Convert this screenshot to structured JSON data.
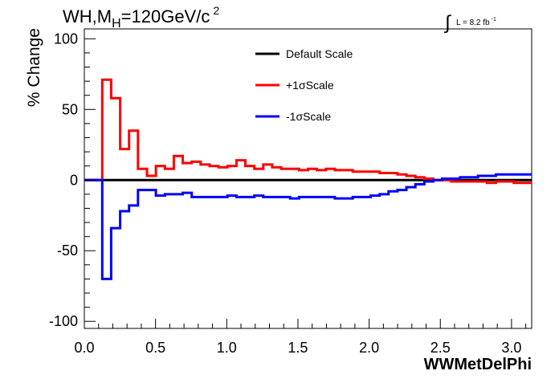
{
  "chart_data": {
    "type": "line",
    "title": {
      "main": "WH,M",
      "subscript": "H",
      "rest": "=120GeV/c",
      "superscript": "2"
    },
    "lumi": {
      "integral_symbol": "∫",
      "text": "L = 8.2 fb",
      "superscript": "-1"
    },
    "xlabel": "WWMetDelPhi",
    "ylabel": "% Change",
    "xlim": [
      0,
      3.1416
    ],
    "ylim": [
      -105,
      107
    ],
    "x_ticks": [
      "0.0",
      "0.5",
      "1.0",
      "1.5",
      "2.0",
      "2.5",
      "3.0"
    ],
    "y_ticks": [
      "-100",
      "-50",
      "0",
      "50",
      "100"
    ],
    "legend_position": "top-center",
    "bin_edges": [
      0,
      0.1257,
      0.1885,
      0.2513,
      0.3142,
      0.377,
      0.4398,
      0.5027,
      0.5655,
      0.6283,
      0.6912,
      0.754,
      0.8168,
      0.8796,
      0.9425,
      1.0053,
      1.0681,
      1.131,
      1.1938,
      1.2566,
      1.3195,
      1.3823,
      1.4451,
      1.508,
      1.5708,
      1.6336,
      1.6965,
      1.7593,
      1.8221,
      1.885,
      1.9478,
      2.0106,
      2.0735,
      2.1363,
      2.1991,
      2.2619,
      2.3248,
      2.3876,
      2.4504,
      2.5133,
      2.5761,
      2.6389,
      2.7018,
      2.7646,
      2.8274,
      2.8903,
      2.9531,
      3.0159,
      3.0788,
      3.1416
    ],
    "series": [
      {
        "name": "Default Scale",
        "color": "#000000",
        "values": [
          0,
          0,
          0,
          0,
          0,
          0,
          0,
          0,
          0,
          0,
          0,
          0,
          0,
          0,
          0,
          0,
          0,
          0,
          0,
          0,
          0,
          0,
          0,
          0,
          0,
          0,
          0,
          0,
          0,
          0,
          0,
          0,
          0,
          0,
          0,
          0,
          0,
          0,
          0,
          0,
          0,
          0,
          0,
          0,
          0,
          0,
          0,
          0,
          0
        ]
      },
      {
        "name": "+1σScale",
        "color": "#ff0000",
        "values": [
          0,
          71,
          58,
          22,
          35,
          8,
          3,
          10,
          8,
          17,
          12,
          13,
          11,
          10,
          9,
          10,
          14,
          10,
          8,
          11,
          9,
          8,
          8,
          7,
          8,
          7,
          8,
          7,
          7,
          6,
          6,
          6,
          5,
          5,
          4,
          3,
          2,
          1,
          0,
          0,
          -1,
          -1,
          -1,
          -1,
          -2,
          -1,
          -1,
          -2,
          -2
        ]
      },
      {
        "name": "-1σScale",
        "color": "#0000ff",
        "values": [
          0,
          -70,
          -34,
          -22,
          -18,
          -7,
          -7,
          -11,
          -10,
          -10,
          -9,
          -12,
          -12,
          -12,
          -12,
          -11,
          -12,
          -12,
          -11,
          -12,
          -12,
          -12,
          -13,
          -12,
          -12,
          -12,
          -12,
          -13,
          -13,
          -12,
          -12,
          -11,
          -10,
          -8,
          -7,
          -5,
          -3,
          -1,
          0,
          1,
          1,
          2,
          2,
          3,
          3,
          4,
          4,
          4,
          4
        ]
      }
    ]
  }
}
